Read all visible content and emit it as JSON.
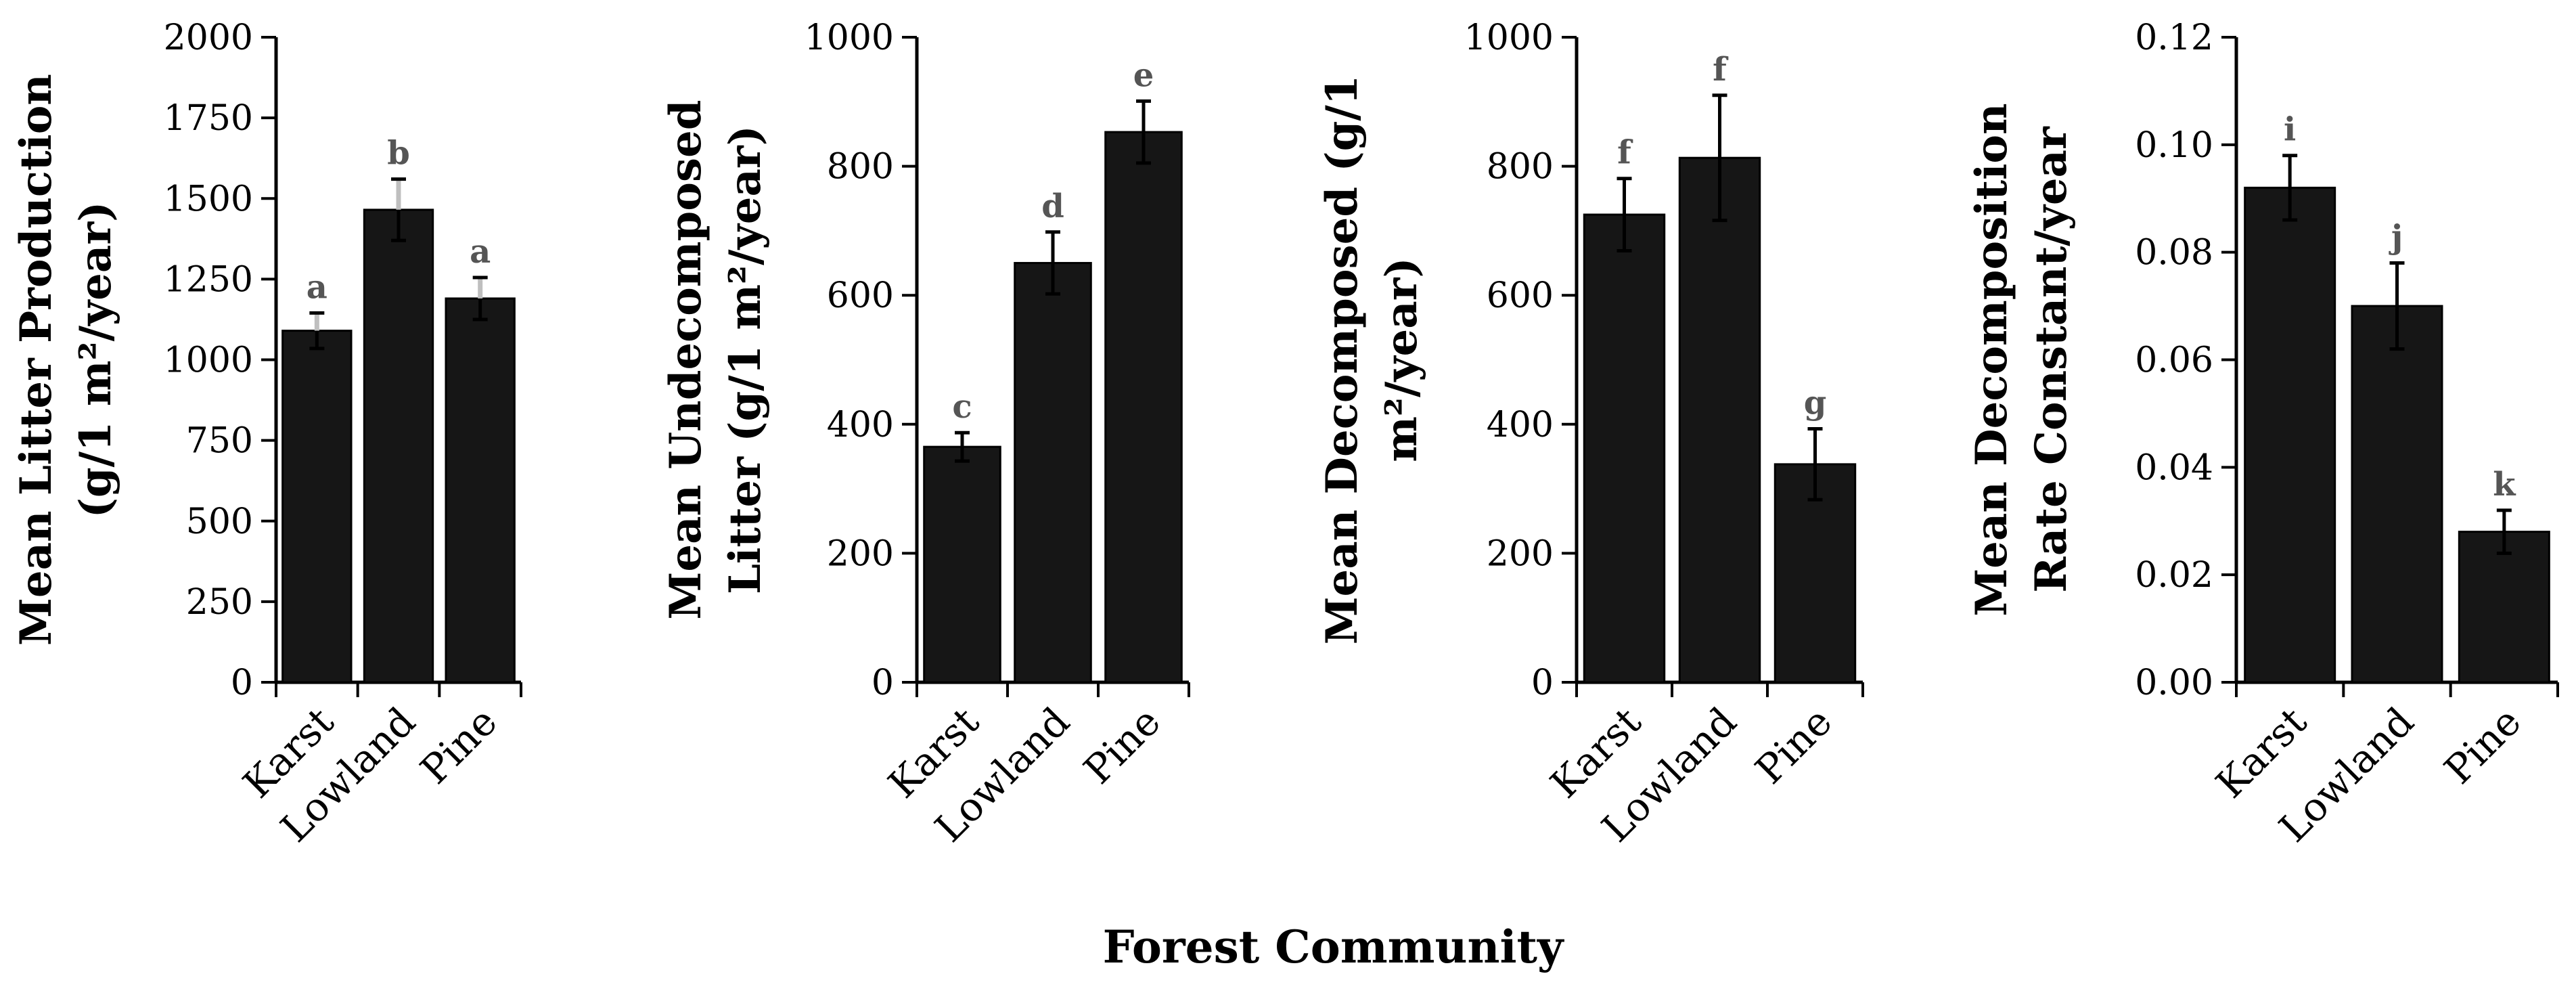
{
  "x_axis_title": "Forest Community",
  "colors": {
    "bar": "#161616",
    "axis": "#000000",
    "error_bar_dark": "#000000",
    "error_bar_light": "#bfbfbf",
    "letter": "#555555"
  },
  "chart_data": [
    {
      "type": "bar",
      "categories": [
        "Karst",
        "Lowland",
        "Pine"
      ],
      "values": [
        1090,
        1465,
        1190
      ],
      "errors": [
        55,
        95,
        65
      ],
      "significance_letters": [
        "a",
        "b",
        "a"
      ],
      "error_bar_style": "light",
      "ylabel_lines": [
        "Mean Litter Production",
        "(g/1 m²/year)"
      ],
      "ylim": [
        0,
        2000
      ],
      "yticks": [
        "0",
        "250",
        "500",
        "750",
        "1000",
        "1250",
        "1500",
        "1750",
        "2000"
      ]
    },
    {
      "type": "bar",
      "categories": [
        "Karst",
        "Lowland",
        "Pine"
      ],
      "values": [
        365,
        650,
        853
      ],
      "errors": [
        22,
        48,
        48
      ],
      "significance_letters": [
        "c",
        "d",
        "e"
      ],
      "error_bar_style": "dark",
      "ylabel_lines": [
        "Mean Undecomposed",
        "Litter (g/1 m²/year)"
      ],
      "ylim": [
        0,
        1000
      ],
      "yticks": [
        "0",
        "200",
        "400",
        "600",
        "800",
        "1000"
      ]
    },
    {
      "type": "bar",
      "categories": [
        "Karst",
        "Lowland",
        "Pine"
      ],
      "values": [
        725,
        813,
        338
      ],
      "errors": [
        56,
        97,
        55
      ],
      "significance_letters": [
        "f",
        "f",
        "g"
      ],
      "error_bar_style": "dark",
      "ylabel_lines": [
        "Mean Decomposed (g/1",
        "m²/year)"
      ],
      "ylim": [
        0,
        1000
      ],
      "yticks": [
        "0",
        "200",
        "400",
        "600",
        "800",
        "1000"
      ]
    },
    {
      "type": "bar",
      "categories": [
        "Karst",
        "Lowland",
        "Pine"
      ],
      "values": [
        0.092,
        0.07,
        0.028
      ],
      "errors": [
        0.006,
        0.008,
        0.004
      ],
      "significance_letters": [
        "i",
        "j",
        "k"
      ],
      "error_bar_style": "dark",
      "ylabel_lines": [
        "Mean Decomposition",
        "Rate Constant/year"
      ],
      "ylim": [
        0,
        0.12
      ],
      "yticks": [
        "0.00",
        "0.02",
        "0.04",
        "0.06",
        "0.08",
        "0.10",
        "0.12"
      ]
    }
  ]
}
